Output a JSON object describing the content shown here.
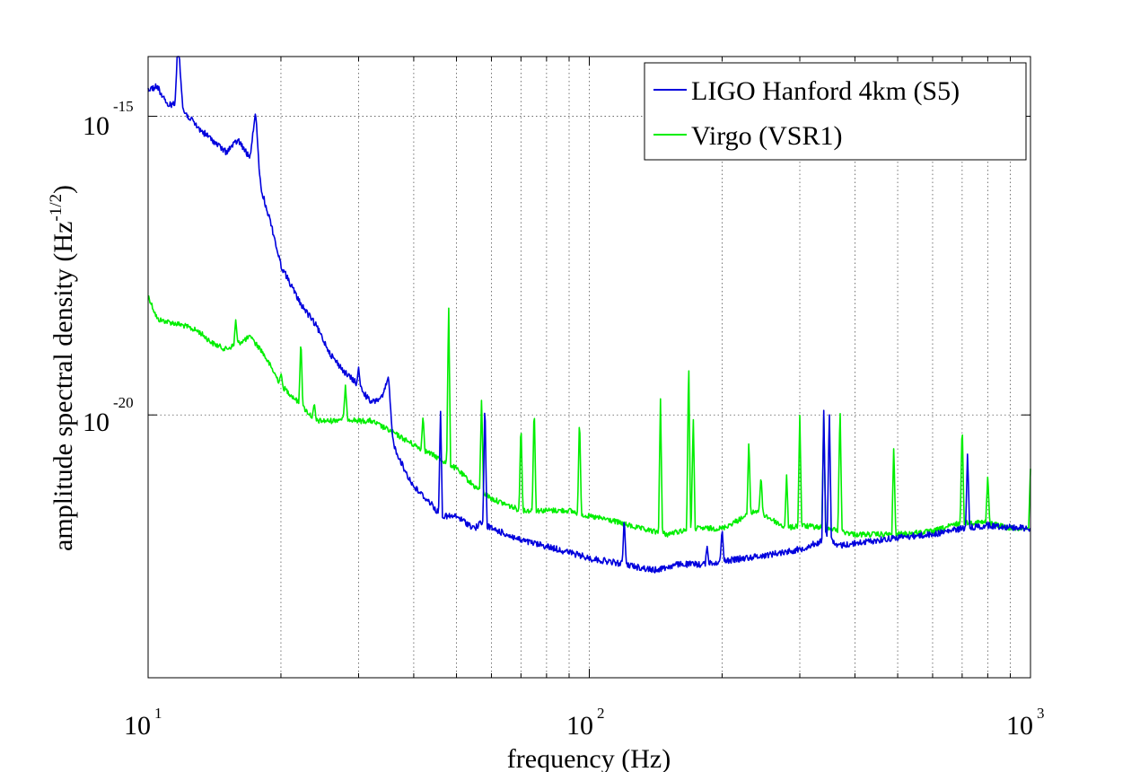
{
  "chart_data": {
    "type": "line",
    "title": "",
    "xlabel": "frequency (Hz)",
    "ylabel": {
      "main": "amplitude spectral density (Hz",
      "exponent": "-1/2",
      "close": ")"
    },
    "xscale": "log",
    "yscale": "log",
    "xlim": [
      10,
      1000
    ],
    "ylim_exponent": [
      -24.4,
      -14
    ],
    "grid": "dotted, major and minor",
    "x_ticks": [
      {
        "value": 10,
        "base": "10",
        "exp": "1"
      },
      {
        "value": 100,
        "base": "10",
        "exp": "2"
      },
      {
        "value": 1000,
        "base": "10",
        "exp": "3"
      }
    ],
    "y_ticks": [
      {
        "value_exponent": -15,
        "base": "10",
        "exp": "-15"
      },
      {
        "value_exponent": -20,
        "base": "10",
        "exp": "-20"
      }
    ],
    "legend": {
      "placement": "top-right",
      "entries": [
        "LIGO Hanford 4km (S5)",
        "Virgo (VSR1)"
      ]
    },
    "series": [
      {
        "name": "LIGO Hanford 4km (S5)",
        "color": "#0000dd",
        "points": [
          [
            10,
            -14.55
          ],
          [
            10.5,
            -14.5
          ],
          [
            11,
            -14.8
          ],
          [
            11.5,
            -14.8
          ],
          [
            11.7,
            -13.8
          ],
          [
            12,
            -14.9
          ],
          [
            13,
            -15.2
          ],
          [
            14,
            -15.4
          ],
          [
            15,
            -15.6
          ],
          [
            16,
            -15.4
          ],
          [
            17,
            -15.7
          ],
          [
            17.5,
            -15.0
          ],
          [
            18,
            -16.2
          ],
          [
            19,
            -16.8
          ],
          [
            20,
            -17.5
          ],
          [
            21,
            -17.8
          ],
          [
            22,
            -18.1
          ],
          [
            24,
            -18.5
          ],
          [
            26,
            -19.0
          ],
          [
            28,
            -19.3
          ],
          [
            30,
            -19.5
          ],
          [
            32,
            -19.8
          ],
          [
            34,
            -19.7
          ],
          [
            35,
            -19.4
          ],
          [
            36,
            -20.5
          ],
          [
            38,
            -20.9
          ],
          [
            40,
            -21.2
          ],
          [
            44,
            -21.5
          ],
          [
            46,
            -21.7
          ],
          [
            50,
            -21.7
          ],
          [
            55,
            -21.9
          ],
          [
            57,
            -21.8
          ],
          [
            60,
            -21.9
          ],
          [
            65,
            -22.0
          ],
          [
            70,
            -22.1
          ],
          [
            80,
            -22.2
          ],
          [
            90,
            -22.3
          ],
          [
            100,
            -22.4
          ],
          [
            120,
            -22.5
          ],
          [
            140,
            -22.6
          ],
          [
            160,
            -22.5
          ],
          [
            180,
            -22.5
          ],
          [
            200,
            -22.45
          ],
          [
            250,
            -22.35
          ],
          [
            300,
            -22.25
          ],
          [
            340,
            -22.1
          ],
          [
            350,
            -21.9
          ],
          [
            360,
            -22.2
          ],
          [
            400,
            -22.15
          ],
          [
            500,
            -22.05
          ],
          [
            600,
            -22.0
          ],
          [
            700,
            -21.9
          ],
          [
            800,
            -21.85
          ],
          [
            1000,
            -21.9
          ]
        ],
        "peaks": [
          [
            11.7,
            -13.8
          ],
          [
            17.5,
            -15.0
          ],
          [
            30,
            -19.2
          ],
          [
            35,
            -19.4
          ],
          [
            46,
            -19.9
          ],
          [
            58,
            -19.7
          ],
          [
            120,
            -21.7
          ],
          [
            185,
            -22.2
          ],
          [
            200,
            -21.9
          ],
          [
            340,
            -19.9
          ],
          [
            350,
            -19.9
          ],
          [
            720,
            -20.6
          ]
        ]
      },
      {
        "name": "Virgo (VSR1)",
        "color": "#00ee00",
        "points": [
          [
            10,
            -18.0
          ],
          [
            10.5,
            -18.4
          ],
          [
            12,
            -18.5
          ],
          [
            13,
            -18.6
          ],
          [
            14,
            -18.8
          ],
          [
            15,
            -18.9
          ],
          [
            16,
            -18.8
          ],
          [
            17,
            -18.7
          ],
          [
            18,
            -18.9
          ],
          [
            19,
            -19.2
          ],
          [
            20,
            -19.5
          ],
          [
            22,
            -19.8
          ],
          [
            24,
            -20.1
          ],
          [
            26,
            -20.1
          ],
          [
            28,
            -20.05
          ],
          [
            30,
            -20.1
          ],
          [
            32,
            -20.1
          ],
          [
            34,
            -20.2
          ],
          [
            36,
            -20.3
          ],
          [
            40,
            -20.5
          ],
          [
            45,
            -20.7
          ],
          [
            50,
            -20.9
          ],
          [
            55,
            -21.2
          ],
          [
            60,
            -21.4
          ],
          [
            70,
            -21.6
          ],
          [
            80,
            -21.6
          ],
          [
            90,
            -21.6
          ],
          [
            100,
            -21.7
          ],
          [
            110,
            -21.75
          ],
          [
            130,
            -21.9
          ],
          [
            150,
            -22.0
          ],
          [
            170,
            -21.9
          ],
          [
            200,
            -21.9
          ],
          [
            240,
            -21.6
          ],
          [
            280,
            -21.9
          ],
          [
            300,
            -21.85
          ],
          [
            350,
            -21.9
          ],
          [
            400,
            -22.0
          ],
          [
            500,
            -22.0
          ],
          [
            600,
            -21.95
          ],
          [
            700,
            -21.8
          ],
          [
            800,
            -21.8
          ],
          [
            900,
            -21.9
          ],
          [
            1000,
            -21.9
          ]
        ],
        "peaks": [
          [
            15.8,
            -18.4
          ],
          [
            17.2,
            -18.7
          ],
          [
            20,
            -19.3
          ],
          [
            22.2,
            -18.7
          ],
          [
            23.8,
            -19.8
          ],
          [
            28,
            -19.5
          ],
          [
            42,
            -20.0
          ],
          [
            48,
            -18.1
          ],
          [
            57,
            -19.7
          ],
          [
            70,
            -20.1
          ],
          [
            75,
            -19.8
          ],
          [
            95,
            -20.0
          ],
          [
            145,
            -19.7
          ],
          [
            168,
            -19.0
          ],
          [
            172,
            -20.0
          ],
          [
            230,
            -20.4
          ],
          [
            245,
            -21.0
          ],
          [
            280,
            -21.0
          ],
          [
            300,
            -20.0
          ],
          [
            340,
            -20.0
          ],
          [
            370,
            -19.8
          ],
          [
            490,
            -20.5
          ],
          [
            700,
            -20.1
          ],
          [
            800,
            -21.0
          ],
          [
            1000,
            -20.9
          ]
        ]
      }
    ]
  }
}
